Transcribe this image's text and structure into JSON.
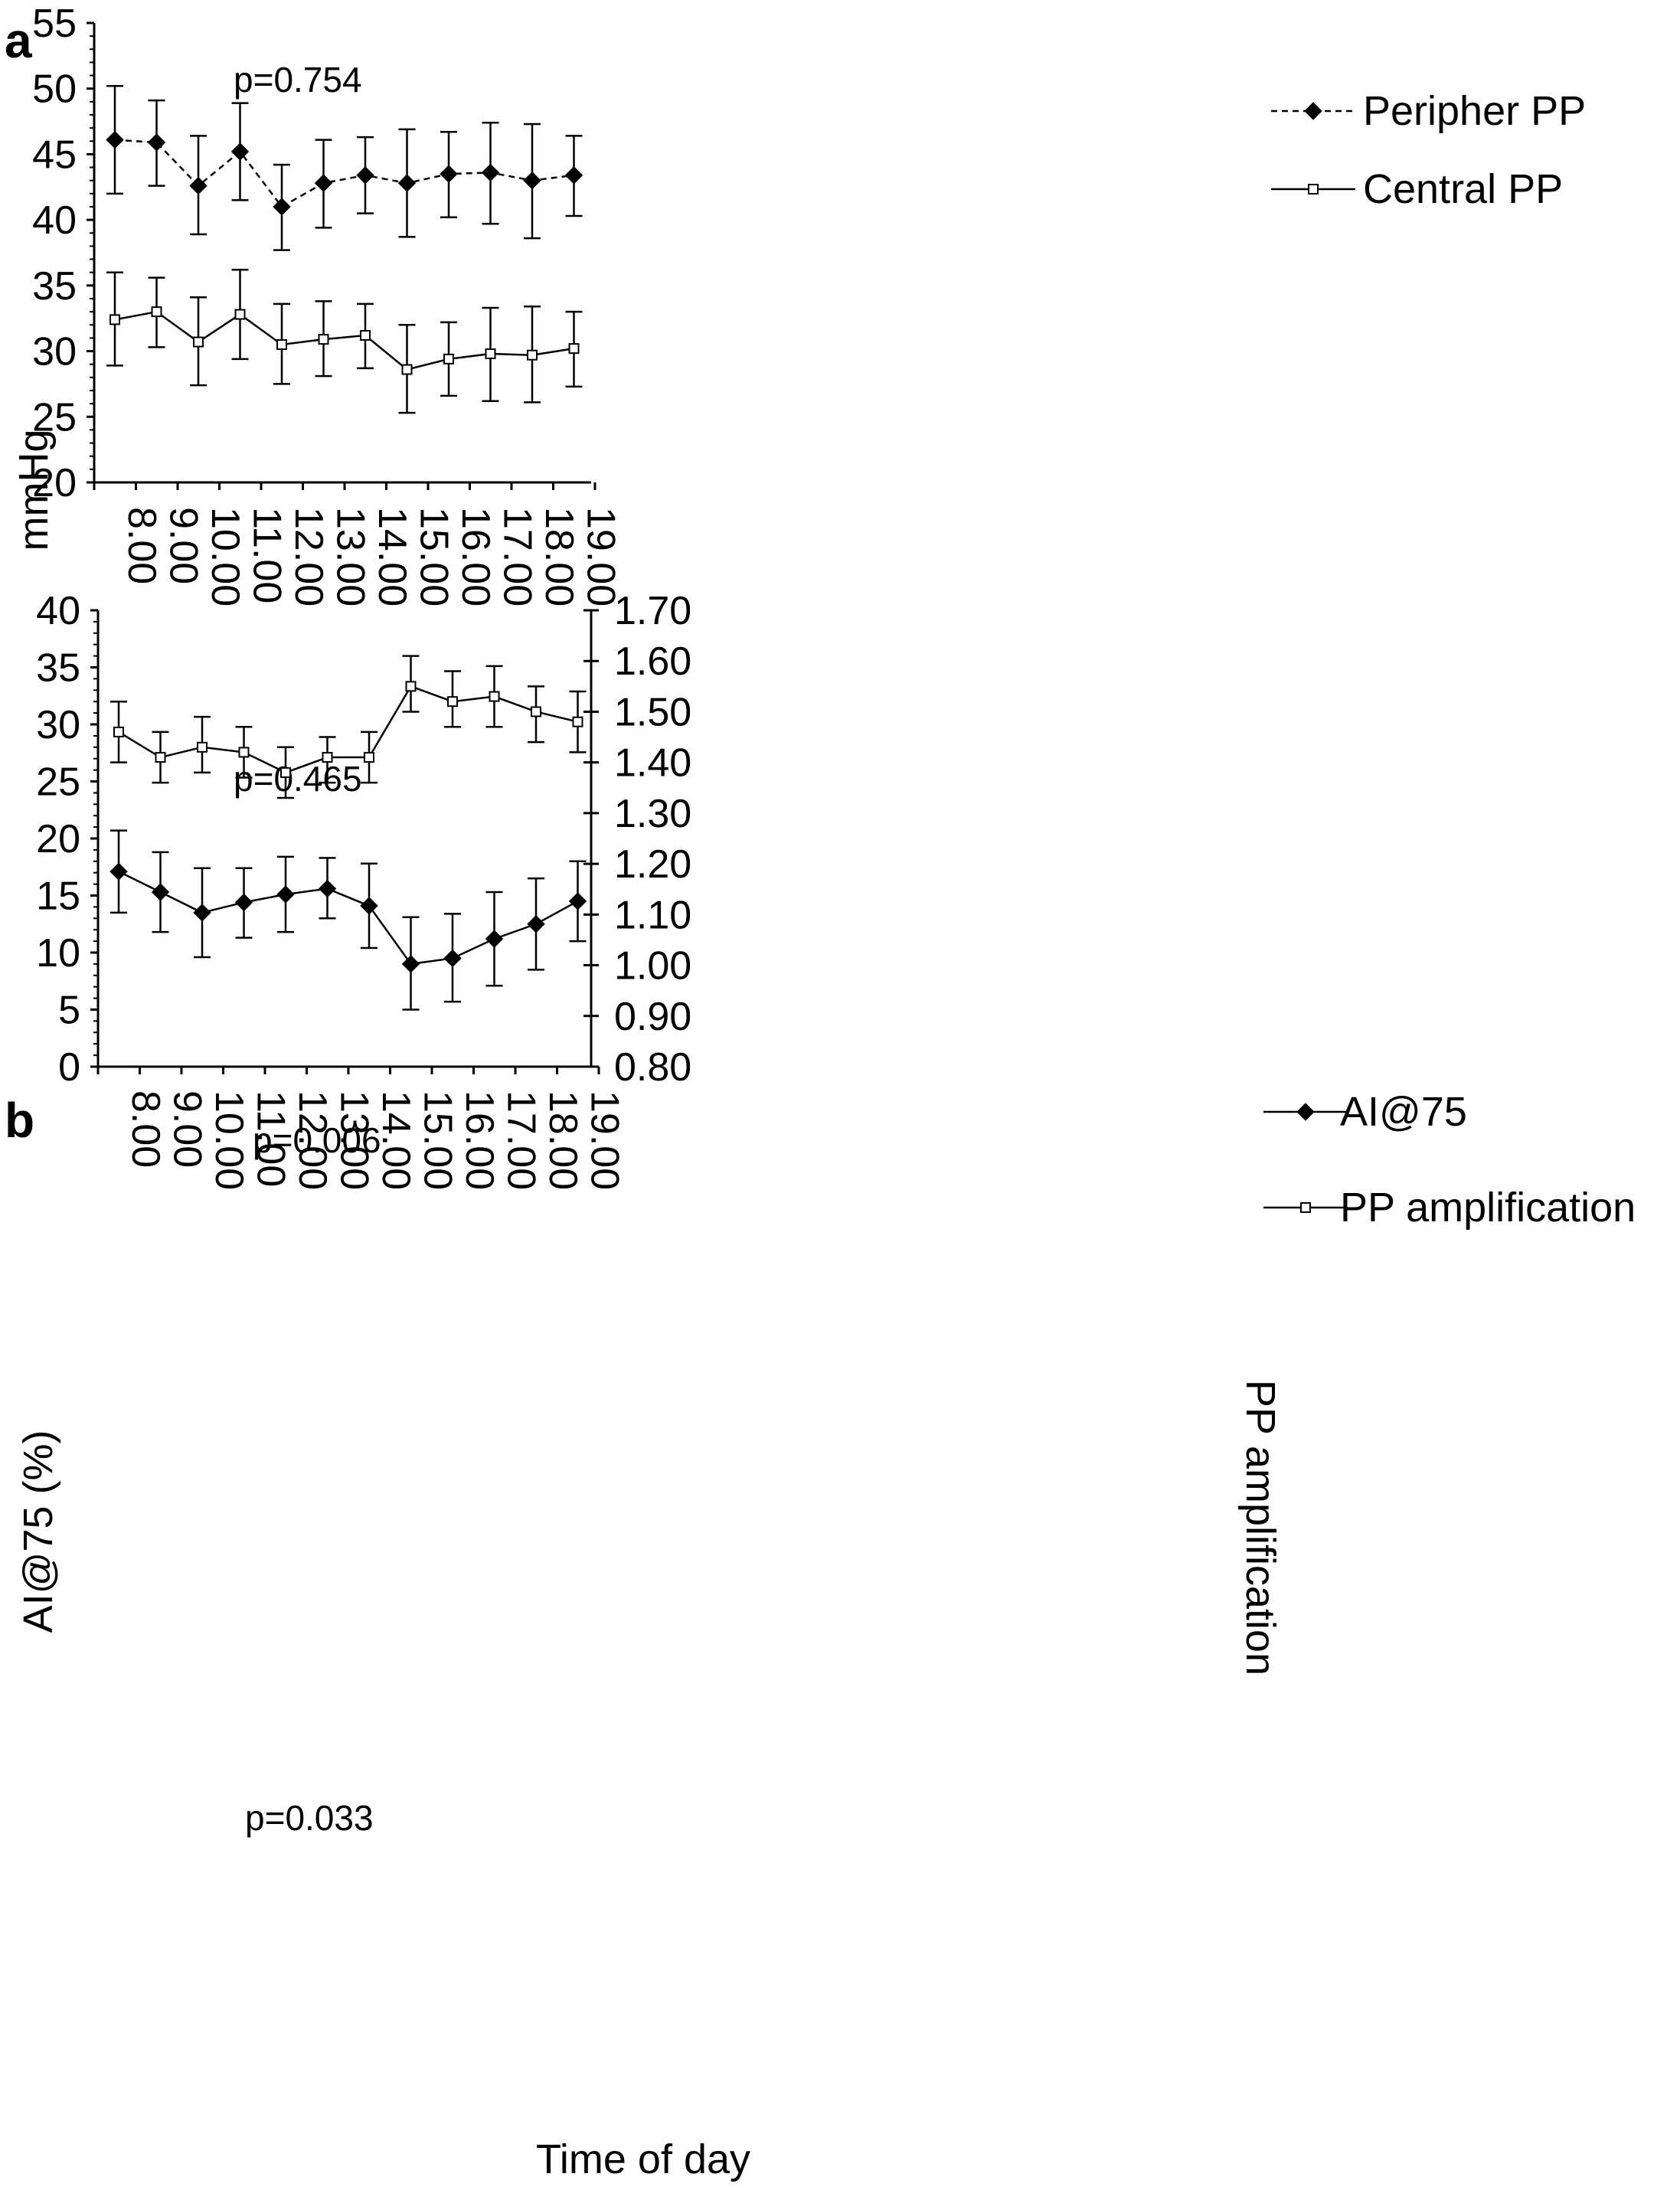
{
  "chart_data": [
    {
      "panel": "a",
      "type": "line",
      "categories": [
        "8.00",
        "9.00",
        "10.00",
        "11.00",
        "12.00",
        "13.00",
        "14.00",
        "15.00",
        "16.00",
        "17.00",
        "18.00",
        "19.00"
      ],
      "xlabel": "",
      "ylabel": "mmHg",
      "ylim": [
        20,
        55
      ],
      "yticks": [
        "20",
        "25",
        "30",
        "35",
        "40",
        "45",
        "50",
        "55"
      ],
      "series": [
        {
          "name": "Peripher PP",
          "marker": "filled-diamond",
          "line": "dashed",
          "values": [
            46.1,
            45.9,
            42.6,
            45.2,
            41.0,
            42.8,
            43.4,
            42.8,
            43.5,
            43.6,
            43.0,
            43.4
          ],
          "err_low": [
            42.0,
            42.6,
            38.9,
            41.5,
            37.7,
            39.4,
            40.5,
            38.7,
            40.2,
            39.7,
            38.6,
            40.3
          ],
          "err_high": [
            50.2,
            49.1,
            46.4,
            48.9,
            44.2,
            46.1,
            46.3,
            46.9,
            46.7,
            47.4,
            47.3,
            46.4
          ]
        },
        {
          "name": "Central PP",
          "marker": "open-square",
          "line": "solid",
          "values": [
            32.4,
            33.0,
            30.7,
            32.8,
            30.5,
            30.9,
            31.2,
            28.6,
            29.4,
            29.8,
            29.7,
            30.2
          ],
          "err_low": [
            28.9,
            30.3,
            27.4,
            29.4,
            27.5,
            28.1,
            28.7,
            25.3,
            26.6,
            26.2,
            26.1,
            27.3
          ],
          "err_high": [
            36.0,
            35.6,
            34.1,
            36.2,
            33.6,
            33.8,
            33.6,
            32.0,
            32.2,
            33.3,
            33.4,
            33.0
          ]
        }
      ],
      "annotations": [
        "p=0.754",
        "p=0.465"
      ],
      "legend_position": "top-right",
      "grid": false
    },
    {
      "panel": "b",
      "type": "line",
      "categories": [
        "8.00",
        "9.00",
        "10.00",
        "11.00",
        "12.00",
        "13.00",
        "14.00",
        "15.00",
        "16.00",
        "17.00",
        "18.00",
        "19.00"
      ],
      "xlabel": "Time of day",
      "ylabel": "AI@75 (%)",
      "ylabel_right": "PP amplification",
      "ylim": [
        0,
        40
      ],
      "ylim_right": [
        0.8,
        1.7
      ],
      "yticks": [
        "0",
        "5",
        "10",
        "15",
        "20",
        "25",
        "30",
        "35",
        "40"
      ],
      "yticks_right": [
        "0.80",
        "0.90",
        "1.00",
        "1.10",
        "1.20",
        "1.30",
        "1.40",
        "1.50",
        "1.60",
        "1.70"
      ],
      "series": [
        {
          "name": "AI@75",
          "axis": "left",
          "marker": "filled-diamond",
          "line": "solid",
          "values": [
            17.1,
            15.3,
            13.5,
            14.4,
            15.1,
            15.6,
            14.1,
            9.0,
            9.5,
            11.2,
            12.5,
            14.5
          ],
          "err_low": [
            13.5,
            11.8,
            9.6,
            11.3,
            11.8,
            13.0,
            10.4,
            5.0,
            5.7,
            7.1,
            8.5,
            11.0
          ],
          "err_high": [
            20.7,
            18.8,
            17.4,
            17.4,
            18.4,
            18.3,
            17.8,
            13.1,
            13.4,
            15.3,
            16.5,
            18.0
          ]
        },
        {
          "name": "PP amplification",
          "axis": "right",
          "marker": "open-square",
          "line": "solid",
          "values": [
            1.46,
            1.41,
            1.43,
            1.42,
            1.38,
            1.41,
            1.41,
            1.55,
            1.52,
            1.53,
            1.5,
            1.48
          ],
          "err_low": [
            1.4,
            1.36,
            1.38,
            1.37,
            1.33,
            1.36,
            1.36,
            1.5,
            1.47,
            1.47,
            1.44,
            1.42
          ],
          "err_high": [
            1.52,
            1.46,
            1.49,
            1.47,
            1.43,
            1.45,
            1.46,
            1.61,
            1.58,
            1.59,
            1.55,
            1.54
          ]
        }
      ],
      "annotations": [
        "p=0.006",
        "p=0.033"
      ],
      "legend_position": "top-right",
      "grid": false
    }
  ],
  "panel_letters": {
    "a": "a",
    "b": "b"
  }
}
